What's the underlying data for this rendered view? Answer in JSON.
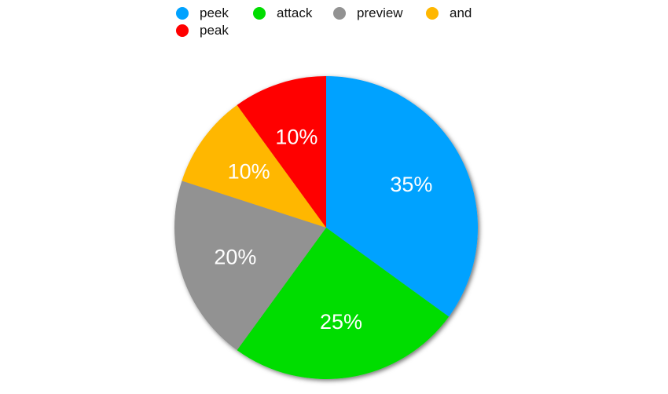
{
  "chart_data": {
    "type": "pie",
    "title": "",
    "start_angle_deg": 0,
    "direction": "clockwise",
    "legend_position": "top",
    "slices": [
      {
        "label": "peek",
        "value": 35,
        "display": "35%",
        "color": "#00a2ff"
      },
      {
        "label": "attack",
        "value": 25,
        "display": "25%",
        "color": "#00dd00"
      },
      {
        "label": "preview",
        "value": 20,
        "display": "20%",
        "color": "#929292"
      },
      {
        "label": "and",
        "value": 10,
        "display": "10%",
        "color": "#ffb700"
      },
      {
        "label": "peak",
        "value": 10,
        "display": "10%",
        "color": "#ff0000"
      }
    ]
  }
}
